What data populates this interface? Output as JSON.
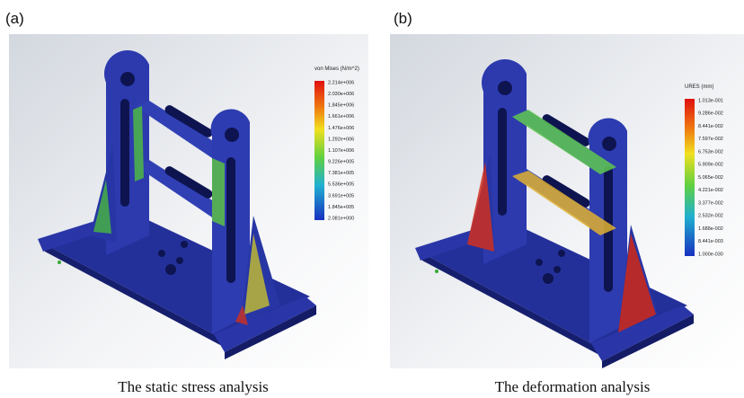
{
  "panels": [
    {
      "label": "(a)",
      "caption": "The static stress analysis",
      "colorbar": {
        "title": "von Mises (N/m^2)",
        "labels": [
          "2.214e+006",
          "2.030e+006",
          "1.845e+006",
          "1.661e+006",
          "1.476e+006",
          "1.292e+006",
          "1.107e+006",
          "9.226e+005",
          "7.381e+005",
          "5.536e+005",
          "3.691e+005",
          "1.845e+005",
          "2.081e+000"
        ]
      }
    },
    {
      "label": "(b)",
      "caption": "The deformation analysis",
      "colorbar": {
        "title": "URES (mm)",
        "labels": [
          "1.013e-001",
          "9.286e-002",
          "8.441e-002",
          "7.597e-002",
          "6.753e-002",
          "5.909e-002",
          "5.065e-002",
          "4.221e-002",
          "3.377e-002",
          "2.532e-002",
          "1.688e-002",
          "8.441e-003",
          "1.000e-030"
        ]
      }
    }
  ]
}
